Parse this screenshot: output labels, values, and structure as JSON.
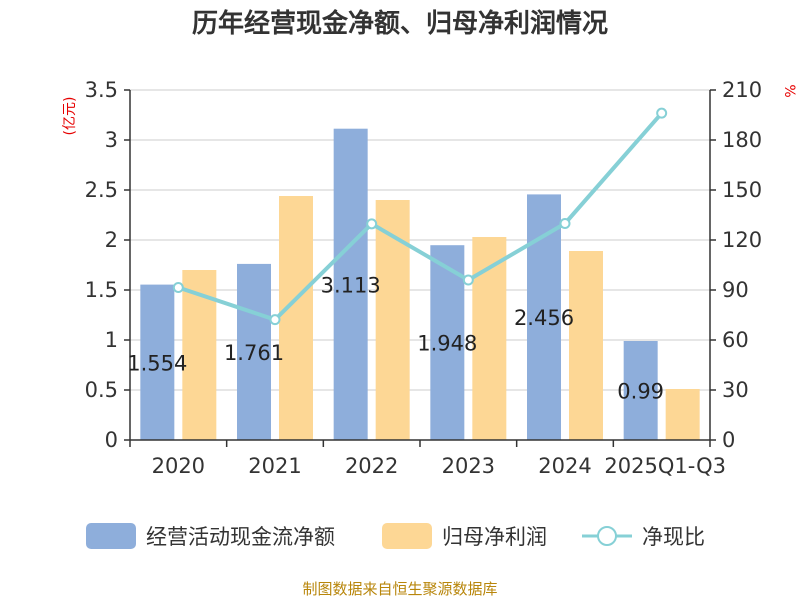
{
  "chart_data": {
    "type": "bar",
    "title": "历年经营现金净额、归母净利润情况",
    "categories": [
      "2020",
      "2021",
      "2022",
      "2023",
      "2024",
      "2025Q1-Q3"
    ],
    "y_left": {
      "unit": "(亿元)",
      "range": [
        0,
        3.5
      ],
      "ticks": [
        "0",
        "0.5",
        "1",
        "1.5",
        "2",
        "2.5",
        "3",
        "3.5"
      ]
    },
    "y_right": {
      "unit": "%",
      "range": [
        0,
        210
      ],
      "ticks": [
        "0",
        "30",
        "60",
        "90",
        "120",
        "150",
        "180",
        "210"
      ]
    },
    "grid": true,
    "legend_position": "bottom",
    "series": [
      {
        "name": "经营活动现金流净额",
        "kind": "bar",
        "axis": "left",
        "color": "#8eaedb",
        "values": [
          1.554,
          1.761,
          3.113,
          1.948,
          2.456,
          0.99
        ],
        "labels": [
          "1.554",
          "1.761",
          "3.113",
          "1.948",
          "2.456",
          "0.99"
        ]
      },
      {
        "name": "归母净利润",
        "kind": "bar",
        "axis": "left",
        "color": "#fdd795",
        "values": [
          1.7,
          2.44,
          2.4,
          2.03,
          1.89,
          0.51
        ]
      },
      {
        "name": "净现比",
        "kind": "line",
        "axis": "right",
        "color": "#86d0d6",
        "values": [
          91.5,
          72.2,
          129.7,
          96.0,
          129.9,
          196.1
        ]
      }
    ],
    "source": "制图数据来自恒生聚源数据库"
  }
}
